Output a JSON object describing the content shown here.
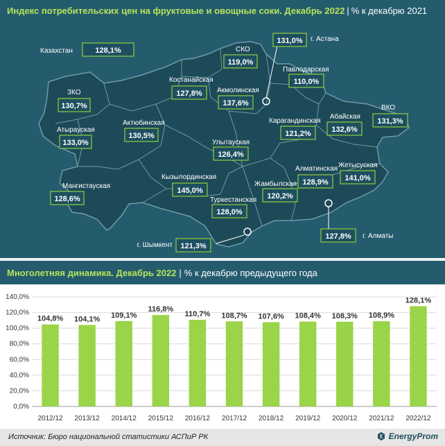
{
  "colors": {
    "map_bg": "#245c6e",
    "map_region": "#1d4a58",
    "map_border": "#6f9aa6",
    "accent_green": "#8fcf3c",
    "value_box_bg": "#1d4f60",
    "bar_green": "#9ad448"
  },
  "map": {
    "title_bold": "Индекс потребительских цен на фруктовые и овощные соки. Декабрь 2022",
    "title_unit": "% к декабрю 2021",
    "country_label": "Казахстан",
    "country_value": "128,1%",
    "regions": [
      {
        "key": "zko",
        "name": "ЗКО",
        "value": "130,7%"
      },
      {
        "key": "atyrau",
        "name": "Атырауская",
        "value": "133,0%"
      },
      {
        "key": "mangistau",
        "name": "Мангистауская",
        "value": "128,6%"
      },
      {
        "key": "aktobe",
        "name": "Актюбинская",
        "value": "130,5%"
      },
      {
        "key": "kostanay",
        "name": "Костанайская",
        "value": "127,8%"
      },
      {
        "key": "sko",
        "name": "СКО",
        "value": "119,0%"
      },
      {
        "key": "akmola",
        "name": "Акмолинская",
        "value": "137,6%"
      },
      {
        "key": "pavlodar",
        "name": "Павлодарская",
        "value": "110,0%"
      },
      {
        "key": "vko",
        "name": "ВКО",
        "value": "131,3%"
      },
      {
        "key": "abai",
        "name": "Абайская",
        "value": "132,6%"
      },
      {
        "key": "karaganda",
        "name": "Карагандинская",
        "value": "121,2%"
      },
      {
        "key": "ulytau",
        "name": "Улытауская",
        "value": "126,4%"
      },
      {
        "key": "kyzylorda",
        "name": "Кызылординская",
        "value": "145,0%"
      },
      {
        "key": "turkestan",
        "name": "Туркестанская",
        "value": "128,0%"
      },
      {
        "key": "zhambyl",
        "name": "Жамбылская",
        "value": "120,2%"
      },
      {
        "key": "almaty_reg",
        "name": "Алматинская",
        "value": "128,9%"
      },
      {
        "key": "zhetysu",
        "name": "Жетысуская",
        "value": "141,0%"
      }
    ],
    "cities": [
      {
        "key": "astana",
        "name": "г. Астана",
        "value": "131,0%"
      },
      {
        "key": "almaty",
        "name": "г. Алматы",
        "value": "127,8%"
      },
      {
        "key": "shymkent",
        "name": "г. Шымкент",
        "value": "121,3%"
      }
    ]
  },
  "chart_header": {
    "title_bold": "Многолетняя динамика. Декабрь 2022",
    "title_unit": "% к декабрю предыдущего года"
  },
  "chart_data": {
    "type": "bar",
    "categories": [
      "2012/12",
      "2013/12",
      "2014/12",
      "2015/12",
      "2016/12",
      "2017/12",
      "2018/12",
      "2019/12",
      "2020/12",
      "2021/12",
      "2022/12"
    ],
    "values": [
      104.8,
      104.1,
      109.1,
      116.8,
      110.7,
      108.7,
      107.6,
      108.4,
      108.3,
      108.9,
      128.1
    ],
    "value_labels": [
      "104,8%",
      "104,1%",
      "109,1%",
      "116,8%",
      "110,7%",
      "108,7%",
      "107,6%",
      "108,4%",
      "108,3%",
      "108,9%",
      "128,1%"
    ],
    "ylim": [
      0,
      140
    ],
    "yticks": [
      0,
      20,
      40,
      60,
      80,
      100,
      120,
      140
    ],
    "ytick_labels": [
      "0,0%",
      "20,0%",
      "40,0%",
      "60,0%",
      "80,0%",
      "100,0%",
      "120,0%",
      "140,0%"
    ],
    "grid": true,
    "xlabel": "",
    "ylabel": ""
  },
  "footer": {
    "source": "Источник: Бюро национальной статистики АСПиР РК",
    "logo": "EnergyProm"
  }
}
